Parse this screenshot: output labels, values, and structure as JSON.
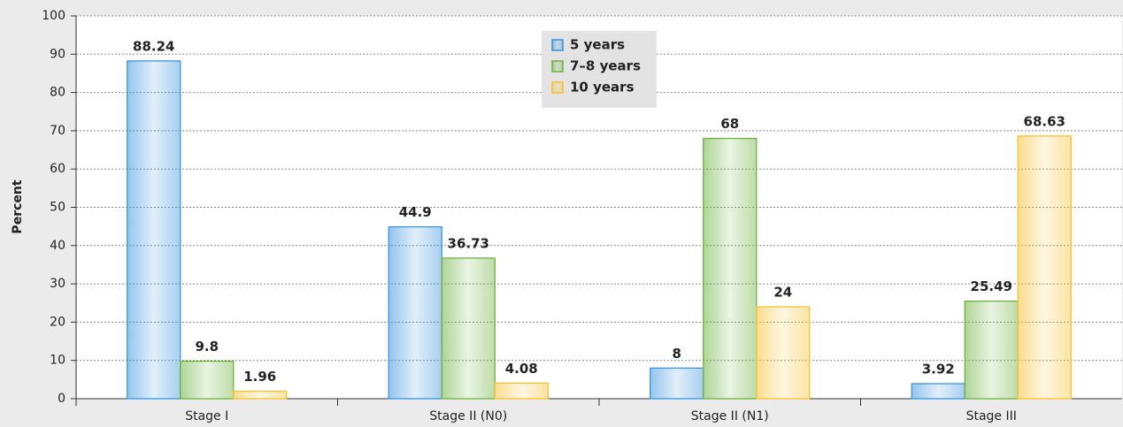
{
  "chart_data": {
    "type": "bar",
    "y_label": "Percent",
    "categories": [
      "Stage I",
      "Stage II (N0)",
      "Stage II (N1)",
      "Stage III"
    ],
    "series": [
      {
        "name": "5 years",
        "color": "#3a95dc",
        "values": [
          88.24,
          44.9,
          8,
          3.92
        ]
      },
      {
        "name": "7–8 years",
        "color": "#6db33f",
        "values": [
          9.8,
          36.73,
          68,
          25.49
        ]
      },
      {
        "name": "10 years",
        "color": "#f5c232",
        "values": [
          1.96,
          4.08,
          24,
          68.63
        ]
      }
    ],
    "ylim": [
      0,
      100
    ],
    "yticks": [
      0,
      10,
      20,
      30,
      40,
      50,
      60,
      70,
      80,
      90,
      100
    ],
    "grid": true,
    "legend": "top-center"
  }
}
